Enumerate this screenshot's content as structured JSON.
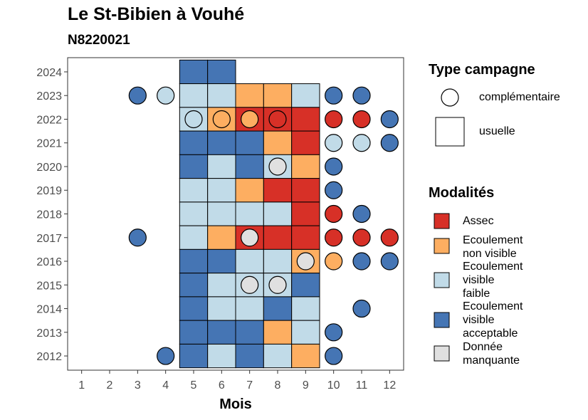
{
  "chart_data": {
    "type": "heatmap",
    "title": "Le St-Bibien à Vouhé",
    "subtitle": "N8220021",
    "xlabel": "Mois",
    "ylabel": "",
    "x_ticks": [
      1,
      2,
      3,
      4,
      5,
      6,
      7,
      8,
      9,
      10,
      11,
      12
    ],
    "y_ticks": [
      2012,
      2013,
      2014,
      2015,
      2016,
      2017,
      2018,
      2019,
      2020,
      2021,
      2022,
      2023,
      2024
    ],
    "xlim": [
      0.5,
      12.5
    ],
    "ylim": [
      2011.4,
      2024.6
    ],
    "categories": {
      "assec": {
        "label": "Assec",
        "color": "#d73027"
      },
      "nv": {
        "label": "Ecoulement non visible",
        "color": "#fdae61"
      },
      "faible": {
        "label": "Ecoulement visible faible",
        "color": "#c1dbe8"
      },
      "acc": {
        "label": "Ecoulement visible acceptable",
        "color": "#4575b4"
      },
      "manq": {
        "label": "Donnée manquante",
        "color": "#e0e0e0"
      }
    },
    "usuelle": [
      {
        "year": 2024,
        "months": {
          "5": "acc",
          "6": "acc"
        }
      },
      {
        "year": 2023,
        "months": {
          "5": "faible",
          "6": "faible",
          "7": "nv",
          "8": "nv",
          "9": "faible"
        }
      },
      {
        "year": 2022,
        "months": {
          "5": "faible",
          "6": "nv",
          "7": "assec",
          "8": "assec",
          "9": "assec"
        }
      },
      {
        "year": 2021,
        "months": {
          "5": "acc",
          "6": "acc",
          "7": "acc",
          "8": "nv",
          "9": "assec"
        }
      },
      {
        "year": 2020,
        "months": {
          "5": "acc",
          "6": "faible",
          "7": "acc",
          "8": "faible",
          "9": "nv"
        }
      },
      {
        "year": 2019,
        "months": {
          "5": "faible",
          "6": "faible",
          "7": "nv",
          "8": "assec",
          "9": "assec"
        }
      },
      {
        "year": 2018,
        "months": {
          "5": "faible",
          "6": "faible",
          "7": "faible",
          "8": "faible",
          "9": "assec"
        }
      },
      {
        "year": 2017,
        "months": {
          "5": "faible",
          "6": "nv",
          "7": "assec",
          "8": "assec",
          "9": "assec"
        }
      },
      {
        "year": 2016,
        "months": {
          "5": "acc",
          "6": "acc",
          "7": "faible",
          "8": "faible",
          "9": "nv"
        }
      },
      {
        "year": 2015,
        "months": {
          "5": "acc",
          "6": "faible",
          "7": "faible",
          "8": "faible",
          "9": "acc"
        }
      },
      {
        "year": 2014,
        "months": {
          "5": "acc",
          "6": "faible",
          "7": "faible",
          "8": "acc",
          "9": "faible"
        }
      },
      {
        "year": 2013,
        "months": {
          "5": "acc",
          "6": "acc",
          "7": "acc",
          "8": "nv",
          "9": "faible"
        }
      },
      {
        "year": 2012,
        "months": {
          "5": "acc",
          "6": "faible",
          "7": "acc",
          "8": "faible",
          "9": "nv"
        }
      }
    ],
    "complementaire": [
      {
        "year": 2023,
        "month": 3,
        "cat": "acc"
      },
      {
        "year": 2023,
        "month": 4,
        "cat": "faible"
      },
      {
        "year": 2023,
        "month": 10,
        "cat": "acc"
      },
      {
        "year": 2023,
        "month": 11,
        "cat": "acc"
      },
      {
        "year": 2022,
        "month": 5,
        "cat": "faible"
      },
      {
        "year": 2022,
        "month": 6,
        "cat": "nv"
      },
      {
        "year": 2022,
        "month": 7,
        "cat": "nv"
      },
      {
        "year": 2022,
        "month": 8,
        "cat": "assec"
      },
      {
        "year": 2022,
        "month": 10,
        "cat": "assec"
      },
      {
        "year": 2022,
        "month": 11,
        "cat": "assec"
      },
      {
        "year": 2022,
        "month": 12,
        "cat": "acc"
      },
      {
        "year": 2021,
        "month": 10,
        "cat": "faible"
      },
      {
        "year": 2021,
        "month": 11,
        "cat": "faible"
      },
      {
        "year": 2021,
        "month": 12,
        "cat": "acc"
      },
      {
        "year": 2020,
        "month": 8,
        "cat": "manq"
      },
      {
        "year": 2020,
        "month": 10,
        "cat": "acc"
      },
      {
        "year": 2019,
        "month": 10,
        "cat": "acc"
      },
      {
        "year": 2018,
        "month": 10,
        "cat": "assec"
      },
      {
        "year": 2018,
        "month": 11,
        "cat": "acc"
      },
      {
        "year": 2017,
        "month": 3,
        "cat": "acc"
      },
      {
        "year": 2017,
        "month": 7,
        "cat": "manq"
      },
      {
        "year": 2017,
        "month": 10,
        "cat": "assec"
      },
      {
        "year": 2017,
        "month": 11,
        "cat": "assec"
      },
      {
        "year": 2017,
        "month": 12,
        "cat": "assec"
      },
      {
        "year": 2016,
        "month": 9,
        "cat": "manq"
      },
      {
        "year": 2016,
        "month": 10,
        "cat": "nv"
      },
      {
        "year": 2016,
        "month": 11,
        "cat": "acc"
      },
      {
        "year": 2016,
        "month": 12,
        "cat": "acc"
      },
      {
        "year": 2015,
        "month": 7,
        "cat": "manq"
      },
      {
        "year": 2015,
        "month": 8,
        "cat": "manq"
      },
      {
        "year": 2014,
        "month": 11,
        "cat": "acc"
      },
      {
        "year": 2013,
        "month": 10,
        "cat": "acc"
      },
      {
        "year": 2012,
        "month": 4,
        "cat": "acc"
      },
      {
        "year": 2012,
        "month": 10,
        "cat": "acc"
      }
    ],
    "legend": {
      "position": "right",
      "type_title": "Type campagne",
      "type_items": [
        {
          "shape": "circle",
          "label": "complémentaire"
        },
        {
          "shape": "square",
          "label": "usuelle"
        }
      ],
      "mod_title": "Modalités",
      "mod_items": [
        {
          "key": "assec",
          "lines": [
            "Assec"
          ]
        },
        {
          "key": "nv",
          "lines": [
            "Ecoulement",
            "non visible"
          ]
        },
        {
          "key": "faible",
          "lines": [
            "Ecoulement",
            "visible",
            "faible"
          ]
        },
        {
          "key": "acc",
          "lines": [
            "Ecoulement",
            "visible",
            "acceptable"
          ]
        },
        {
          "key": "manq",
          "lines": [
            "Donnée",
            "manquante"
          ]
        }
      ]
    }
  }
}
